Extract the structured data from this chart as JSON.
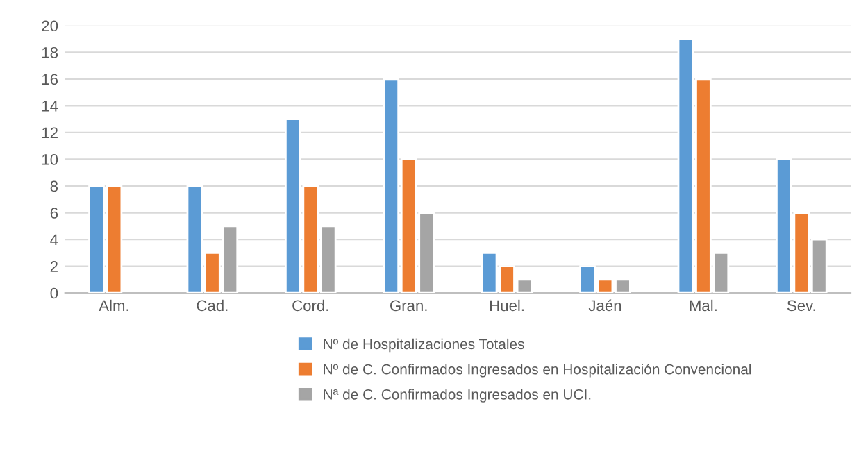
{
  "chart_data": {
    "type": "bar",
    "categories": [
      "Alm.",
      "Cad.",
      "Cord.",
      "Gran.",
      "Huel.",
      "Jaén",
      "Mal.",
      "Sev."
    ],
    "series": [
      {
        "name": "Nº de Hospitalizaciones Totales",
        "color": "#5b9bd5",
        "values": [
          8,
          8,
          13,
          16,
          3,
          2,
          19,
          10
        ]
      },
      {
        "name": "Nº de C. Confirmados Ingresados en Hospitalización Convencional",
        "color": "#ed7d31",
        "values": [
          8,
          3,
          8,
          10,
          2,
          1,
          16,
          6
        ]
      },
      {
        "name": "Nª de C. Confirmados Ingresados en UCI.",
        "color": "#a5a5a5",
        "values": [
          null,
          5,
          5,
          6,
          1,
          1,
          3,
          4
        ]
      }
    ],
    "ylim": [
      0,
      20
    ],
    "yticks": [
      0,
      2,
      4,
      6,
      8,
      10,
      12,
      14,
      16,
      18,
      20
    ],
    "grid": "y",
    "legend": "bottom"
  }
}
